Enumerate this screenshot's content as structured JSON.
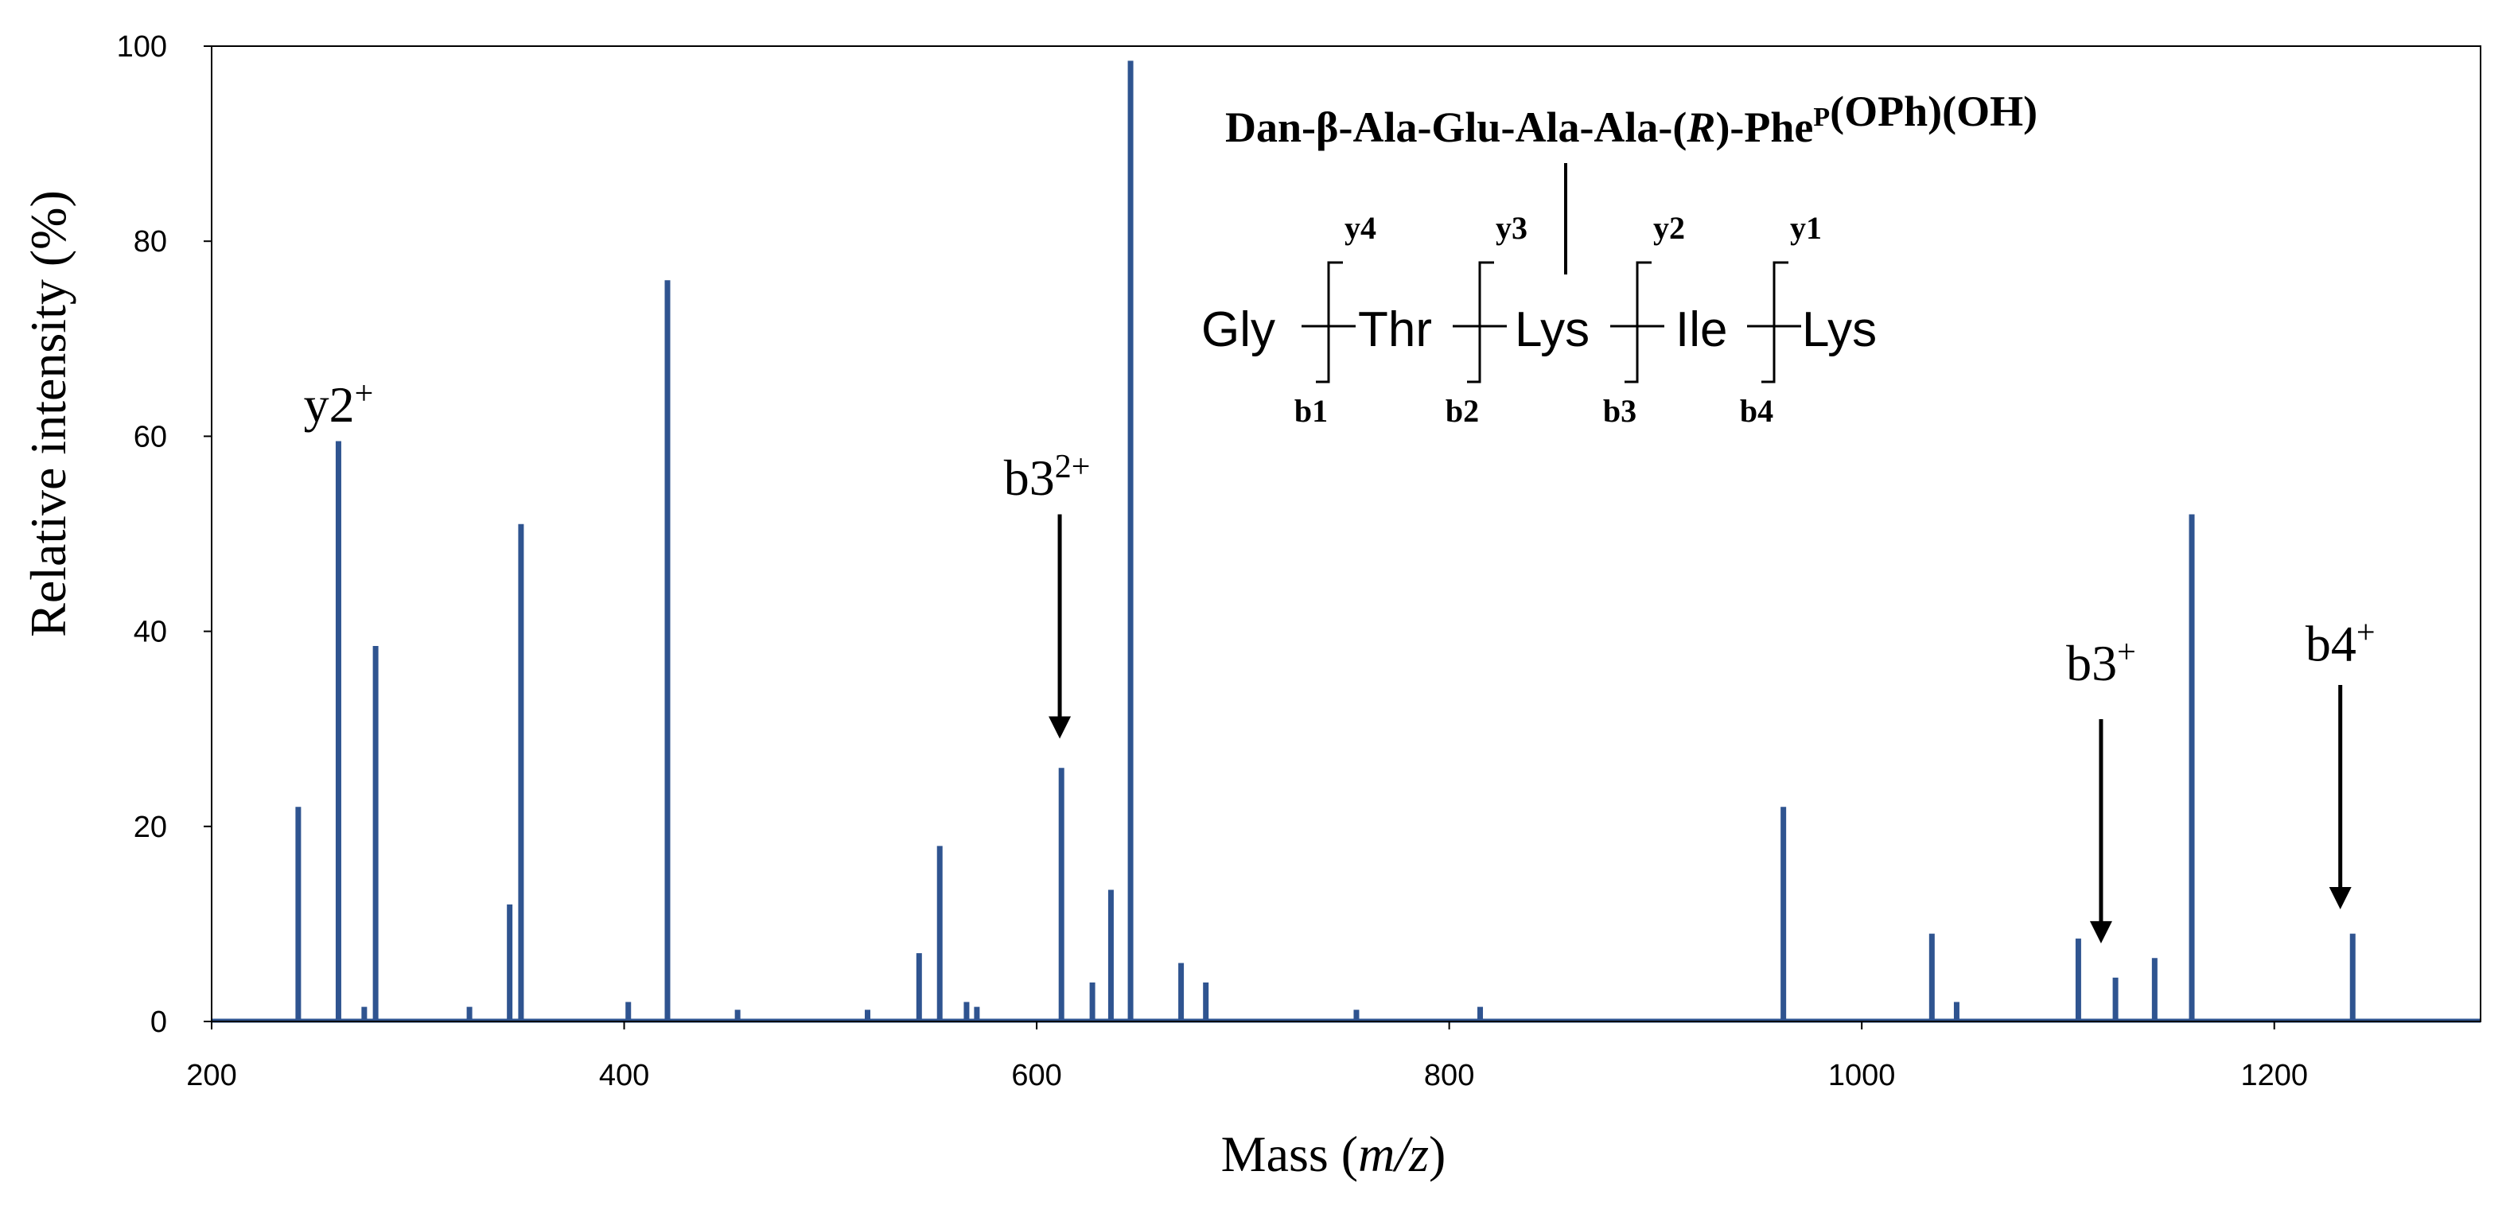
{
  "chart_data": {
    "type": "spectrum",
    "title": "",
    "xlabel": {
      "prefix": "Mass (",
      "italic": "m/z",
      "suffix": ")"
    },
    "ylabel": "Relative intensity (%)",
    "xlim": [
      200,
      1300
    ],
    "ylim": [
      0,
      100
    ],
    "xticks": [
      200,
      400,
      600,
      800,
      1000,
      1200
    ],
    "yticks": [
      0,
      20,
      40,
      60,
      80,
      100
    ],
    "grid": false,
    "color": "#2f5490",
    "peaks": [
      {
        "x": 242,
        "y": 22
      },
      {
        "x": 261.5,
        "y": 59.5
      },
      {
        "x": 279.5,
        "y": 38.5
      },
      {
        "x": 274,
        "y": 1.5
      },
      {
        "x": 325,
        "y": 1.5
      },
      {
        "x": 344.5,
        "y": 12
      },
      {
        "x": 350,
        "y": 51
      },
      {
        "x": 402,
        "y": 2
      },
      {
        "x": 421,
        "y": 76
      },
      {
        "x": 455,
        "y": 1.2
      },
      {
        "x": 518,
        "y": 1.2
      },
      {
        "x": 543,
        "y": 7
      },
      {
        "x": 553,
        "y": 18
      },
      {
        "x": 566,
        "y": 2
      },
      {
        "x": 571,
        "y": 1.5
      },
      {
        "x": 612,
        "y": 26
      },
      {
        "x": 627,
        "y": 4
      },
      {
        "x": 636,
        "y": 13.5
      },
      {
        "x": 645.5,
        "y": 98.5
      },
      {
        "x": 670,
        "y": 6
      },
      {
        "x": 682,
        "y": 4
      },
      {
        "x": 755,
        "y": 1.2
      },
      {
        "x": 815,
        "y": 1.5
      },
      {
        "x": 962,
        "y": 22
      },
      {
        "x": 1034,
        "y": 9
      },
      {
        "x": 1046,
        "y": 2
      },
      {
        "x": 1105,
        "y": 8.5
      },
      {
        "x": 1123,
        "y": 4.5
      },
      {
        "x": 1142,
        "y": 6.5
      },
      {
        "x": 1160,
        "y": 52
      },
      {
        "x": 1238,
        "y": 9
      }
    ],
    "annotations": [
      {
        "label": "y2",
        "charge": "+",
        "x": 261.5,
        "y": 61.5,
        "arrow": false
      },
      {
        "label": "b3",
        "charge": "2+",
        "x": 605,
        "y": 54,
        "arrow": true,
        "arrow_from": 52,
        "arrow_to": 29
      },
      {
        "label": "b3",
        "charge": "+",
        "x": 1116,
        "y": 35,
        "arrow": true,
        "arrow_from": 31,
        "arrow_to": 8
      },
      {
        "label": "b4",
        "charge": "+",
        "x": 1232,
        "y": 37,
        "arrow": true,
        "arrow_from": 34.5,
        "arrow_to": 11.5
      }
    ],
    "inset": {
      "title_parts": [
        {
          "text": "Dan-β-Ala-Glu-Ala-Ala-(",
          "style": "bold"
        },
        {
          "text": "R",
          "style": "bold-italic"
        },
        {
          "text": ")-Phe",
          "style": "bold"
        },
        {
          "text": "P",
          "style": "sup"
        },
        {
          "text": "(OPh)(OH)",
          "style": "bold"
        }
      ],
      "residues": [
        "Gly",
        "Thr",
        "Lys",
        "Ile",
        "Lys"
      ],
      "y_ions": [
        "y4",
        "y3",
        "y2",
        "y1"
      ],
      "b_ions": [
        "b1",
        "b2",
        "b3",
        "b4"
      ]
    }
  }
}
